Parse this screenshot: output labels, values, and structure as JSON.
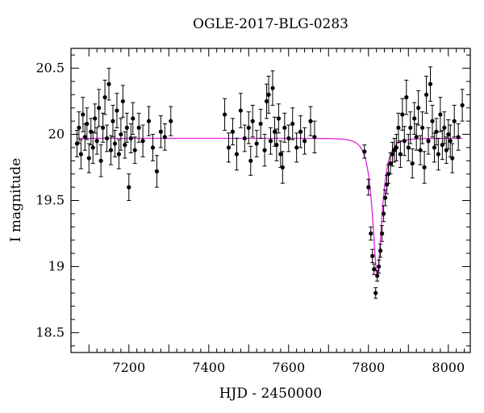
{
  "chart_data": {
    "type": "scatter",
    "title": "OGLE-2017-BLG-0283",
    "xlabel": "HJD - 2450000",
    "ylabel": "I magnitude",
    "xlim": [
      7055,
      8055
    ],
    "ylim": [
      20.65,
      18.35
    ],
    "y_inverted": true,
    "xticks": [
      7200,
      7400,
      7600,
      7800,
      8000
    ],
    "yticks": [
      18.5,
      19,
      19.5,
      20,
      20.5
    ],
    "ytick_labels": [
      "18.5",
      "19",
      "19.5",
      "20",
      "20.5"
    ],
    "grid": false,
    "marker_color": "#000000",
    "model_color": "#e020e0",
    "model": {
      "baseline": 19.97,
      "peak_x": 7822,
      "peak_mag": 18.92,
      "tE_days": 22
    },
    "series": [
      {
        "type": "errorbar",
        "points": [
          {
            "x": 7070,
            "y": 19.93,
            "e": 0.1
          },
          {
            "x": 7075,
            "y": 20.05,
            "e": 0.12
          },
          {
            "x": 7080,
            "y": 19.85,
            "e": 0.11
          },
          {
            "x": 7085,
            "y": 20.15,
            "e": 0.13
          },
          {
            "x": 7090,
            "y": 19.98,
            "e": 0.1
          },
          {
            "x": 7095,
            "y": 20.08,
            "e": 0.12
          },
          {
            "x": 7100,
            "y": 19.82,
            "e": 0.11
          },
          {
            "x": 7105,
            "y": 20.02,
            "e": 0.1
          },
          {
            "x": 7110,
            "y": 19.9,
            "e": 0.12
          },
          {
            "x": 7115,
            "y": 20.12,
            "e": 0.11
          },
          {
            "x": 7120,
            "y": 19.95,
            "e": 0.1
          },
          {
            "x": 7125,
            "y": 20.2,
            "e": 0.14
          },
          {
            "x": 7130,
            "y": 19.8,
            "e": 0.12
          },
          {
            "x": 7135,
            "y": 20.05,
            "e": 0.11
          },
          {
            "x": 7140,
            "y": 20.28,
            "e": 0.13
          },
          {
            "x": 7145,
            "y": 19.97,
            "e": 0.1
          },
          {
            "x": 7150,
            "y": 20.38,
            "e": 0.12
          },
          {
            "x": 7155,
            "y": 19.88,
            "e": 0.11
          },
          {
            "x": 7160,
            "y": 20.1,
            "e": 0.12
          },
          {
            "x": 7165,
            "y": 19.93,
            "e": 0.1
          },
          {
            "x": 7170,
            "y": 20.18,
            "e": 0.13
          },
          {
            "x": 7175,
            "y": 19.85,
            "e": 0.11
          },
          {
            "x": 7180,
            "y": 20.0,
            "e": 0.12
          },
          {
            "x": 7185,
            "y": 20.25,
            "e": 0.12
          },
          {
            "x": 7190,
            "y": 19.92,
            "e": 0.1
          },
          {
            "x": 7195,
            "y": 20.05,
            "e": 0.11
          },
          {
            "x": 7200,
            "y": 19.6,
            "e": 0.1
          },
          {
            "x": 7205,
            "y": 19.97,
            "e": 0.11
          },
          {
            "x": 7210,
            "y": 20.12,
            "e": 0.12
          },
          {
            "x": 7215,
            "y": 19.88,
            "e": 0.1
          },
          {
            "x": 7225,
            "y": 20.05,
            "e": 0.11
          },
          {
            "x": 7235,
            "y": 19.95,
            "e": 0.12
          },
          {
            "x": 7250,
            "y": 20.1,
            "e": 0.11
          },
          {
            "x": 7260,
            "y": 19.9,
            "e": 0.1
          },
          {
            "x": 7270,
            "y": 19.72,
            "e": 0.12
          },
          {
            "x": 7280,
            "y": 20.02,
            "e": 0.12
          },
          {
            "x": 7290,
            "y": 19.98,
            "e": 0.1
          },
          {
            "x": 7305,
            "y": 20.1,
            "e": 0.11
          },
          {
            "x": 7440,
            "y": 20.15,
            "e": 0.12
          },
          {
            "x": 7450,
            "y": 19.9,
            "e": 0.11
          },
          {
            "x": 7460,
            "y": 20.02,
            "e": 0.1
          },
          {
            "x": 7470,
            "y": 19.85,
            "e": 0.12
          },
          {
            "x": 7480,
            "y": 20.18,
            "e": 0.13
          },
          {
            "x": 7490,
            "y": 19.97,
            "e": 0.1
          },
          {
            "x": 7500,
            "y": 20.05,
            "e": 0.12
          },
          {
            "x": 7505,
            "y": 19.8,
            "e": 0.11
          },
          {
            "x": 7510,
            "y": 20.1,
            "e": 0.12
          },
          {
            "x": 7520,
            "y": 19.93,
            "e": 0.1
          },
          {
            "x": 7530,
            "y": 20.08,
            "e": 0.11
          },
          {
            "x": 7540,
            "y": 19.88,
            "e": 0.12
          },
          {
            "x": 7545,
            "y": 20.25,
            "e": 0.13
          },
          {
            "x": 7550,
            "y": 20.3,
            "e": 0.14
          },
          {
            "x": 7555,
            "y": 19.95,
            "e": 0.1
          },
          {
            "x": 7560,
            "y": 20.35,
            "e": 0.13
          },
          {
            "x": 7565,
            "y": 20.02,
            "e": 0.11
          },
          {
            "x": 7570,
            "y": 19.92,
            "e": 0.12
          },
          {
            "x": 7575,
            "y": 20.12,
            "e": 0.11
          },
          {
            "x": 7580,
            "y": 19.85,
            "e": 0.1
          },
          {
            "x": 7585,
            "y": 19.75,
            "e": 0.12
          },
          {
            "x": 7590,
            "y": 20.05,
            "e": 0.11
          },
          {
            "x": 7600,
            "y": 19.97,
            "e": 0.1
          },
          {
            "x": 7610,
            "y": 20.08,
            "e": 0.12
          },
          {
            "x": 7620,
            "y": 19.9,
            "e": 0.11
          },
          {
            "x": 7630,
            "y": 20.02,
            "e": 0.12
          },
          {
            "x": 7640,
            "y": 19.95,
            "e": 0.1
          },
          {
            "x": 7655,
            "y": 20.1,
            "e": 0.11
          },
          {
            "x": 7665,
            "y": 19.98,
            "e": 0.12
          },
          {
            "x": 7790,
            "y": 19.87,
            "e": 0.05
          },
          {
            "x": 7800,
            "y": 19.6,
            "e": 0.06
          },
          {
            "x": 7806,
            "y": 19.25,
            "e": 0.05
          },
          {
            "x": 7810,
            "y": 19.08,
            "e": 0.05
          },
          {
            "x": 7814,
            "y": 18.98,
            "e": 0.04
          },
          {
            "x": 7818,
            "y": 18.8,
            "e": 0.04
          },
          {
            "x": 7822,
            "y": 18.93,
            "e": 0.04
          },
          {
            "x": 7826,
            "y": 19.0,
            "e": 0.05
          },
          {
            "x": 7830,
            "y": 19.12,
            "e": 0.05
          },
          {
            "x": 7834,
            "y": 19.25,
            "e": 0.06
          },
          {
            "x": 7838,
            "y": 19.4,
            "e": 0.06
          },
          {
            "x": 7842,
            "y": 19.52,
            "e": 0.06
          },
          {
            "x": 7846,
            "y": 19.62,
            "e": 0.07
          },
          {
            "x": 7850,
            "y": 19.7,
            "e": 0.07
          },
          {
            "x": 7855,
            "y": 19.78,
            "e": 0.08
          },
          {
            "x": 7860,
            "y": 19.85,
            "e": 0.09
          },
          {
            "x": 7865,
            "y": 19.88,
            "e": 0.09
          },
          {
            "x": 7870,
            "y": 19.9,
            "e": 0.1
          },
          {
            "x": 7875,
            "y": 20.05,
            "e": 0.11
          },
          {
            "x": 7880,
            "y": 19.85,
            "e": 0.1
          },
          {
            "x": 7885,
            "y": 20.15,
            "e": 0.12
          },
          {
            "x": 7890,
            "y": 19.95,
            "e": 0.11
          },
          {
            "x": 7895,
            "y": 20.28,
            "e": 0.13
          },
          {
            "x": 7900,
            "y": 19.9,
            "e": 0.1
          },
          {
            "x": 7905,
            "y": 20.05,
            "e": 0.12
          },
          {
            "x": 7910,
            "y": 19.78,
            "e": 0.11
          },
          {
            "x": 7915,
            "y": 20.12,
            "e": 0.12
          },
          {
            "x": 7920,
            "y": 19.98,
            "e": 0.1
          },
          {
            "x": 7925,
            "y": 20.2,
            "e": 0.13
          },
          {
            "x": 7930,
            "y": 19.88,
            "e": 0.11
          },
          {
            "x": 7935,
            "y": 20.05,
            "e": 0.12
          },
          {
            "x": 7940,
            "y": 19.75,
            "e": 0.12
          },
          {
            "x": 7945,
            "y": 20.3,
            "e": 0.14
          },
          {
            "x": 7950,
            "y": 19.95,
            "e": 0.1
          },
          {
            "x": 7955,
            "y": 20.38,
            "e": 0.13
          },
          {
            "x": 7960,
            "y": 20.1,
            "e": 0.12
          },
          {
            "x": 7965,
            "y": 19.9,
            "e": 0.11
          },
          {
            "x": 7970,
            "y": 20.02,
            "e": 0.1
          },
          {
            "x": 7975,
            "y": 19.85,
            "e": 0.12
          },
          {
            "x": 7980,
            "y": 20.15,
            "e": 0.13
          },
          {
            "x": 7985,
            "y": 19.92,
            "e": 0.11
          },
          {
            "x": 7990,
            "y": 20.05,
            "e": 0.12
          },
          {
            "x": 7995,
            "y": 19.88,
            "e": 0.1
          },
          {
            "x": 8000,
            "y": 20.0,
            "e": 0.11
          },
          {
            "x": 8005,
            "y": 19.95,
            "e": 0.12
          },
          {
            "x": 8010,
            "y": 19.82,
            "e": 0.11
          },
          {
            "x": 8015,
            "y": 20.1,
            "e": 0.12
          },
          {
            "x": 8025,
            "y": 19.98,
            "e": 0.1
          },
          {
            "x": 8035,
            "y": 20.22,
            "e": 0.12
          }
        ]
      }
    ]
  }
}
